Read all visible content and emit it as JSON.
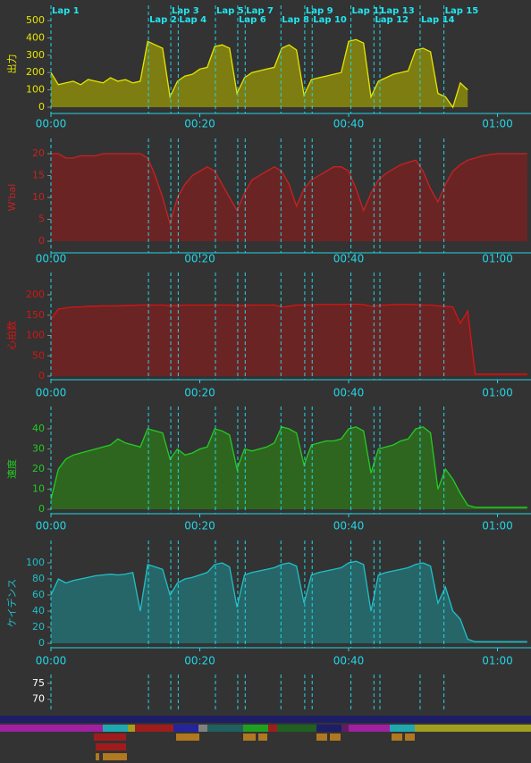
{
  "chart_data": [
    {
      "type": "area",
      "y_label": "出力",
      "color": "#e6e600",
      "fill": "#7d7d12",
      "xlim": [
        0,
        64.5
      ],
      "ylim": [
        0,
        500
      ],
      "yticks": [
        0,
        100,
        200,
        300,
        400,
        500
      ],
      "xticks": [
        {
          "value": 0,
          "label": "00:00"
        },
        {
          "value": 20,
          "label": "00:20"
        },
        {
          "value": 40,
          "label": "00:40"
        },
        {
          "value": 60,
          "label": "01:00"
        }
      ],
      "x": [
        0,
        1,
        2,
        3,
        4,
        5,
        6,
        7,
        8,
        9,
        10,
        11,
        12,
        13,
        14,
        15,
        16,
        17,
        18,
        19,
        20,
        21,
        22,
        23,
        24,
        25,
        26,
        27,
        28,
        29,
        30,
        31,
        32,
        33,
        34,
        35,
        36,
        37,
        38,
        39,
        40,
        41,
        42,
        43,
        44,
        45,
        46,
        47,
        48,
        49,
        50,
        51,
        52,
        53,
        54,
        55,
        56,
        57,
        58,
        59,
        60,
        61,
        62,
        63,
        64
      ],
      "values": [
        200,
        130,
        140,
        150,
        130,
        160,
        150,
        140,
        170,
        150,
        160,
        140,
        150,
        380,
        360,
        340,
        60,
        150,
        180,
        190,
        220,
        230,
        350,
        360,
        340,
        80,
        170,
        200,
        210,
        220,
        230,
        340,
        360,
        330,
        70,
        160,
        170,
        180,
        190,
        200,
        380,
        390,
        370,
        60,
        150,
        170,
        190,
        200,
        210,
        330,
        340,
        320,
        80,
        60,
        0,
        140,
        100,
        null,
        null,
        null,
        null,
        null,
        null,
        null,
        null
      ]
    },
    {
      "type": "area",
      "y_label": "W'bal",
      "color": "#c82222",
      "fill": "#6b2424",
      "xlim": [
        0,
        64.5
      ],
      "ylim": [
        0,
        20
      ],
      "yticks": [
        0,
        5,
        10,
        15,
        20
      ],
      "xticks": [
        {
          "value": 0,
          "label": "00:00"
        },
        {
          "value": 20,
          "label": "00:20"
        },
        {
          "value": 40,
          "label": "00:40"
        },
        {
          "value": 60,
          "label": "01:00"
        }
      ],
      "x": [
        0,
        1,
        2,
        3,
        4,
        5,
        6,
        7,
        8,
        9,
        10,
        11,
        12,
        13,
        14,
        15,
        16,
        17,
        18,
        19,
        20,
        21,
        22,
        23,
        24,
        25,
        26,
        27,
        28,
        29,
        30,
        31,
        32,
        33,
        34,
        35,
        36,
        37,
        38,
        39,
        40,
        41,
        42,
        43,
        44,
        45,
        46,
        47,
        48,
        49,
        50,
        51,
        52,
        53,
        54,
        55,
        56,
        57,
        58,
        59,
        60,
        61,
        62,
        63,
        64
      ],
      "values": [
        20,
        20,
        19,
        19,
        19.5,
        19.5,
        19.5,
        20,
        20,
        20,
        20,
        20,
        20,
        19,
        15,
        10,
        4,
        10,
        13,
        15,
        16,
        17,
        16,
        13,
        10,
        7,
        11,
        14,
        15,
        16,
        17,
        16,
        13,
        8,
        12,
        14,
        15,
        16,
        17,
        17,
        16,
        12,
        7,
        11,
        14,
        15.5,
        16.5,
        17.5,
        18,
        18.5,
        16,
        12,
        9,
        13,
        16,
        17.5,
        18.5,
        19,
        19.5,
        19.8,
        20,
        20,
        20,
        20,
        20
      ]
    },
    {
      "type": "area",
      "y_label": "心拍数",
      "color": "#d81414",
      "fill": "#6b2424",
      "xlim": [
        0,
        64.5
      ],
      "ylim": [
        0,
        200
      ],
      "yticks": [
        0,
        50,
        100,
        150,
        200
      ],
      "xticks": [
        {
          "value": 0,
          "label": "00:00"
        },
        {
          "value": 20,
          "label": "00:20"
        },
        {
          "value": 40,
          "label": "00:40"
        },
        {
          "value": 60,
          "label": "01:00"
        }
      ],
      "x": [
        0,
        1,
        2,
        3,
        4,
        5,
        6,
        7,
        8,
        9,
        10,
        11,
        12,
        13,
        14,
        15,
        16,
        17,
        18,
        19,
        20,
        21,
        22,
        23,
        24,
        25,
        26,
        27,
        28,
        29,
        30,
        31,
        32,
        33,
        34,
        35,
        36,
        37,
        38,
        39,
        40,
        41,
        42,
        43,
        44,
        45,
        46,
        47,
        48,
        49,
        50,
        51,
        52,
        53,
        54,
        55,
        56,
        57,
        58,
        59,
        60,
        61,
        62,
        63,
        64
      ],
      "values": [
        140,
        165,
        168,
        170,
        170,
        172,
        172,
        173,
        173,
        173,
        174,
        174,
        175,
        175,
        175,
        175,
        174,
        174,
        175,
        175,
        175,
        175,
        175,
        175,
        175,
        174,
        174,
        175,
        175,
        175,
        175,
        170,
        172,
        175,
        175,
        175,
        176,
        176,
        176,
        176,
        177,
        177,
        176,
        172,
        174,
        175,
        176,
        176,
        176,
        176,
        175,
        175,
        173,
        172,
        170,
        130,
        160,
        5,
        5,
        5,
        5,
        5,
        5,
        5,
        5
      ]
    },
    {
      "type": "area",
      "y_label": "速度",
      "color": "#22cc22",
      "fill": "#2e6620",
      "xlim": [
        0,
        64.5
      ],
      "ylim": [
        0,
        40
      ],
      "yticks": [
        0,
        10,
        20,
        30,
        40
      ],
      "xticks": [
        {
          "value": 0,
          "label": "00:00"
        },
        {
          "value": 20,
          "label": "00:20"
        },
        {
          "value": 40,
          "label": "00:40"
        },
        {
          "value": 60,
          "label": "01:00"
        }
      ],
      "x": [
        0,
        1,
        2,
        3,
        4,
        5,
        6,
        7,
        8,
        9,
        10,
        11,
        12,
        13,
        14,
        15,
        16,
        17,
        18,
        19,
        20,
        21,
        22,
        23,
        24,
        25,
        26,
        27,
        28,
        29,
        30,
        31,
        32,
        33,
        34,
        35,
        36,
        37,
        38,
        39,
        40,
        41,
        42,
        43,
        44,
        45,
        46,
        47,
        48,
        49,
        50,
        51,
        52,
        53,
        54,
        55,
        56,
        57,
        58,
        59,
        60,
        61,
        62,
        63,
        64
      ],
      "values": [
        5,
        20,
        25,
        27,
        28,
        29,
        30,
        31,
        32,
        35,
        33,
        32,
        31,
        40,
        39,
        38,
        25,
        30,
        27,
        28,
        30,
        31,
        40,
        39,
        37,
        20,
        30,
        29,
        30,
        31,
        33,
        41,
        40,
        38,
        22,
        32,
        33,
        34,
        34,
        35,
        40,
        41,
        39,
        18,
        30,
        31,
        32,
        34,
        35,
        40,
        41,
        38,
        10,
        20,
        15,
        8,
        2,
        1,
        1,
        1,
        1,
        1,
        1,
        1,
        1
      ]
    },
    {
      "type": "area",
      "y_label": "ケイデンス",
      "color": "#20c0c8",
      "fill": "#266668",
      "xlim": [
        0,
        64.5
      ],
      "ylim": [
        0,
        100
      ],
      "yticks": [
        0,
        20,
        40,
        60,
        80,
        100
      ],
      "xticks": [
        {
          "value": 0,
          "label": "00:00"
        },
        {
          "value": 20,
          "label": "00:20"
        },
        {
          "value": 40,
          "label": "00:40"
        },
        {
          "value": 60,
          "label": "01:00"
        }
      ],
      "x": [
        0,
        1,
        2,
        3,
        4,
        5,
        6,
        7,
        8,
        9,
        10,
        11,
        12,
        13,
        14,
        15,
        16,
        17,
        18,
        19,
        20,
        21,
        22,
        23,
        24,
        25,
        26,
        27,
        28,
        29,
        30,
        31,
        32,
        33,
        34,
        35,
        36,
        37,
        38,
        39,
        40,
        41,
        42,
        43,
        44,
        45,
        46,
        47,
        48,
        49,
        50,
        51,
        52,
        53,
        54,
        55,
        56,
        57,
        58,
        59,
        60,
        61,
        62,
        63,
        64
      ],
      "values": [
        60,
        80,
        75,
        78,
        80,
        82,
        84,
        85,
        86,
        85,
        86,
        88,
        40,
        98,
        95,
        92,
        60,
        75,
        80,
        82,
        85,
        88,
        98,
        100,
        95,
        45,
        85,
        88,
        90,
        92,
        94,
        98,
        100,
        96,
        50,
        85,
        88,
        90,
        92,
        94,
        100,
        102,
        98,
        40,
        85,
        88,
        90,
        92,
        94,
        98,
        100,
        96,
        50,
        70,
        40,
        30,
        5,
        2,
        2,
        2,
        2,
        2,
        2,
        2,
        2
      ]
    },
    {
      "type": "ticks",
      "color": "#ffffff",
      "xlim": [
        0,
        64.5
      ],
      "ylim": [
        66,
        78
      ],
      "yticks": [
        70,
        75
      ]
    }
  ],
  "laps": [
    {
      "label": "Lap 1",
      "x": 0
    },
    {
      "label": "Lap 2",
      "x": 13.1
    },
    {
      "label": "Lap 3",
      "x": 16.1
    },
    {
      "label": "Lap 4",
      "x": 17.1
    },
    {
      "label": "Lap 5",
      "x": 22.1
    },
    {
      "label": "Lap 6",
      "x": 25.1
    },
    {
      "label": "Lap 7",
      "x": 26.1
    },
    {
      "label": "Lap 8",
      "x": 30.9
    },
    {
      "label": "Lap 9",
      "x": 34.1
    },
    {
      "label": "Lap 10",
      "x": 35.1
    },
    {
      "label": "Lap 11",
      "x": 40.3
    },
    {
      "label": "Lap 12",
      "x": 43.4
    },
    {
      "label": "Lap 13",
      "x": 44.2
    },
    {
      "label": "Lap 14",
      "x": 49.6
    },
    {
      "label": "Lap 15",
      "x": 52.8
    }
  ]
}
